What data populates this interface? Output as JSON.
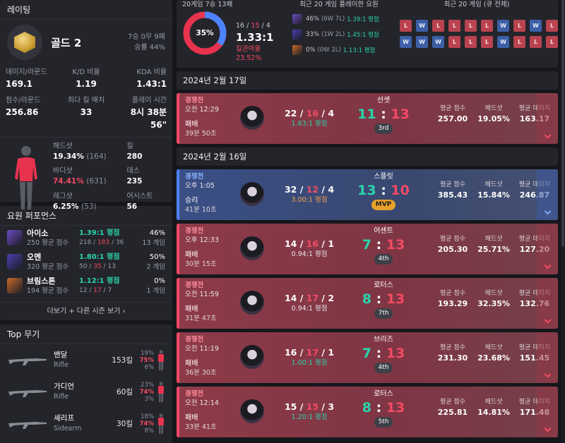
{
  "rating": {
    "title": "레이팅",
    "tier": "골드 2",
    "record": "7승 0무 9패",
    "winrate": "승률 44%",
    "stats": [
      {
        "label": "데미지/라운드",
        "value": "169.1",
        "color": ""
      },
      {
        "label": "K/D 비율",
        "value": "1.19",
        "color": ""
      },
      {
        "label": "KDA 비율",
        "value": "1.43:1",
        "color": "teal"
      },
      {
        "label": "점수/라운드",
        "value": "256.86",
        "color": ""
      },
      {
        "label": "최다 킬 매치",
        "value": "33",
        "color": ""
      },
      {
        "label": "플레이 시간",
        "value": "8시 38분 56\"",
        "color": ""
      }
    ],
    "hits": {
      "head_label": "헤드샷",
      "head_pct": "19.34%",
      "head_count": "(164)",
      "body_label": "바디샷",
      "body_pct": "74.41%",
      "body_count": "(631)",
      "leg_label": "레그샷",
      "leg_pct": "6.25%",
      "leg_count": "(53)",
      "kills_label": "킬",
      "kills": "280",
      "deaths_label": "데스",
      "deaths": "235",
      "assists_label": "어시스트",
      "assists": "56"
    }
  },
  "agents": {
    "title": "요원 퍼포먼스",
    "rows": [
      {
        "name": "아이소",
        "score": "250 평균 점수",
        "kda": "1.39:1 평점",
        "k": "218",
        "d": "183",
        "a": "36",
        "winrate": "46%",
        "games": "13 게임",
        "color": "#6b4cc4"
      },
      {
        "name": "오멘",
        "score": "320 평균 점수",
        "kda": "1.80:1 평점",
        "k": "50",
        "d": "35",
        "a": "13",
        "winrate": "50%",
        "games": "2 게임",
        "color": "#4a3fb0"
      },
      {
        "name": "브림스톤",
        "score": "194 평균 점수",
        "kda": "1.12:1 평점",
        "k": "12",
        "d": "17",
        "a": "7",
        "winrate": "0%",
        "games": "1 게임",
        "color": "#c86a2d"
      }
    ],
    "more": "더보기 + 다른 시즌 보기"
  },
  "weapons": {
    "title": "Top 무기",
    "rows": [
      {
        "name": "밴달",
        "type": "Rifle",
        "kills": "153킬",
        "head": "19%",
        "body": "75%",
        "leg": "6%"
      },
      {
        "name": "가디언",
        "type": "Rifle",
        "kills": "60킬",
        "head": "23%",
        "body": "74%",
        "leg": "3%"
      },
      {
        "name": "셰리프",
        "type": "Sidearm",
        "kills": "30킬",
        "head": "18%",
        "body": "74%",
        "leg": "8%"
      }
    ]
  },
  "summary": {
    "games_title": "20게임 7승 13패",
    "win_pct": 35,
    "win_pct_label": "35%",
    "kills": "16",
    "deaths": "15",
    "assists": "4",
    "kda": "1.33:1",
    "kill_rate": "킬관여율 23.52%",
    "agents_title": "최근 20 게임 플레이한 요원",
    "agent_rows": [
      {
        "pct": "46%",
        "wl": "(6W 7L)",
        "kda": "1.39:1 평점",
        "color": "#6b4cc4"
      },
      {
        "pct": "33%",
        "wl": "(1W 2L)",
        "kda": "1.45:1 평점",
        "color": "#4a3fb0"
      },
      {
        "pct": "0%",
        "wl": "(0W 2L)",
        "kda": "1.13:1 평점",
        "color": "#c86a2d"
      }
    ],
    "wl_title": "최근 20 게임 (큐 전체)",
    "wl": [
      "L",
      "W",
      "L",
      "L",
      "L",
      "L",
      "W",
      "L",
      "W",
      "L",
      "W",
      "W",
      "W",
      "L",
      "L",
      "L",
      "W",
      "L",
      "L",
      "L"
    ]
  },
  "dates": [
    "2024년 2월 17일",
    "2024년 2월 16일"
  ],
  "matches": [
    {
      "result_type": "loss",
      "mode": "경쟁전",
      "time": "오전 12:29",
      "result": "패배",
      "length": "39분 50초",
      "k": "22",
      "d": "16",
      "a": "4",
      "rating": "1.63:1 평점",
      "rating_color": "teal",
      "map": "선셋",
      "score_a": "11",
      "score_b": "13",
      "place": "3rd",
      "mvp": false,
      "avg_score": "257.00",
      "headshot": "19.05%",
      "avg_damage": "163.17"
    },
    {
      "result_type": "win",
      "mode": "경쟁전",
      "time": "오후 1:05",
      "result": "승리",
      "length": "41분 10초",
      "k": "32",
      "d": "12",
      "a": "4",
      "rating": "3.00:1 평점",
      "rating_color": "",
      "map": "스플릿",
      "score_a": "13",
      "score_b": "10",
      "place": "MVP",
      "mvp": true,
      "avg_score": "385.43",
      "headshot": "15.84%",
      "avg_damage": "246.87"
    },
    {
      "result_type": "loss",
      "mode": "경쟁전",
      "time": "오후 12:33",
      "result": "패배",
      "length": "30분 15초",
      "k": "14",
      "d": "16",
      "a": "1",
      "rating": "0.94:1 평점",
      "rating_color": "",
      "map": "어센트",
      "score_a": "7",
      "score_b": "13",
      "place": "4th",
      "mvp": false,
      "avg_score": "205.30",
      "headshot": "25.71%",
      "avg_damage": "127.20"
    },
    {
      "result_type": "loss",
      "mode": "경쟁전",
      "time": "오전 11:59",
      "result": "패배",
      "length": "31분 47초",
      "k": "14",
      "d": "17",
      "a": "2",
      "rating": "0.94:1 평점",
      "rating_color": "",
      "map": "로터스",
      "score_a": "8",
      "score_b": "13",
      "place": "7th",
      "mvp": false,
      "avg_score": "193.29",
      "headshot": "32.35%",
      "avg_damage": "132.76"
    },
    {
      "result_type": "loss",
      "mode": "경쟁전",
      "time": "오전 11:19",
      "result": "패배",
      "length": "36분 30초",
      "k": "16",
      "d": "17",
      "a": "1",
      "rating": "1.00:1 평점",
      "rating_color": "teal",
      "map": "브리즈",
      "score_a": "7",
      "score_b": "13",
      "place": "4th",
      "mvp": false,
      "avg_score": "231.30",
      "headshot": "23.68%",
      "avg_damage": "151.45"
    },
    {
      "result_type": "loss",
      "mode": "경쟁전",
      "time": "오전 12:14",
      "result": "패배",
      "length": "33분 41초",
      "k": "15",
      "d": "15",
      "a": "3",
      "rating": "1.20:1 평점",
      "rating_color": "teal",
      "map": "로터스",
      "score_a": "8",
      "score_b": "13",
      "place": "5th",
      "mvp": false,
      "avg_score": "225.81",
      "headshot": "14.81%",
      "avg_damage": "171.48"
    }
  ],
  "match_labels": {
    "avg_score": "평균 점수",
    "headshot": "헤드샷",
    "avg_damage": "평균 데미지"
  }
}
